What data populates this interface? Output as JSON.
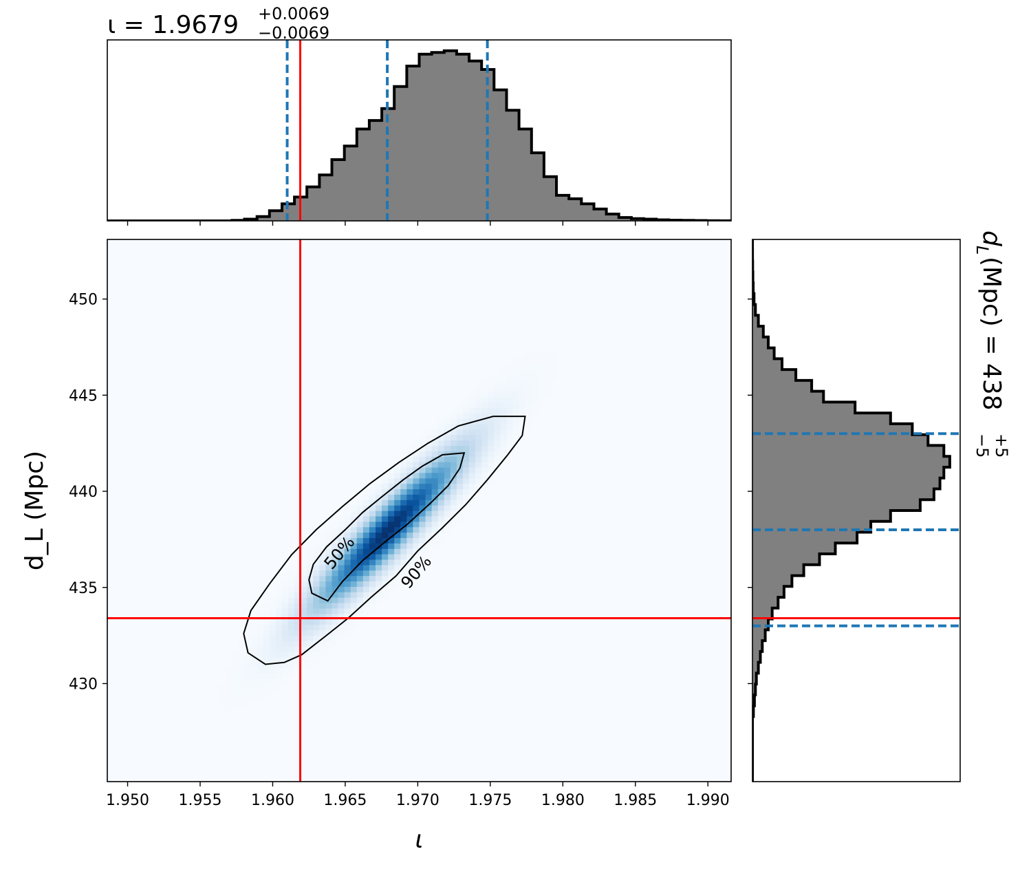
{
  "chart_data": [
    {
      "type": "histogram",
      "panel": "iota-marginal",
      "title": {
        "prefix": "ι = 1.9679",
        "upper": "+0.0069",
        "lower": "−0.0069"
      },
      "xlim": [
        1.9486,
        1.9916
      ],
      "bin_edges_start": 1.9486,
      "bin_width": 0.00086,
      "counts_normalized": [
        0,
        0,
        0,
        0,
        0,
        0,
        0,
        0,
        0,
        0,
        0.003,
        0.01,
        0.025,
        0.06,
        0.1,
        0.14,
        0.2,
        0.27,
        0.36,
        0.44,
        0.54,
        0.59,
        0.66,
        0.79,
        0.91,
        0.98,
        0.99,
        1.0,
        0.98,
        0.94,
        0.89,
        0.77,
        0.65,
        0.54,
        0.4,
        0.26,
        0.15,
        0.13,
        0.1,
        0.07,
        0.04,
        0.02,
        0.013,
        0.01,
        0.006,
        0.004,
        0.003,
        0.002,
        0.001,
        0.0005
      ],
      "quantile_lines": [
        1.961,
        1.9679,
        1.9748
      ],
      "true_value": 1.9619
    },
    {
      "type": "heatmap",
      "panel": "iota-dL-joint",
      "xlabel": "ι",
      "ylabel": "d_L (Mpc)",
      "xlim": [
        1.9486,
        1.9916
      ],
      "ylim": [
        424.9,
        453.1
      ],
      "x_ticks": [
        1.95,
        1.955,
        1.96,
        1.965,
        1.97,
        1.975,
        1.98,
        1.985,
        1.99
      ],
      "x_tick_labels": [
        "1.950",
        "1.955",
        "1.960",
        "1.965",
        "1.970",
        "1.975",
        "1.980",
        "1.985",
        "1.990"
      ],
      "y_ticks": [
        430,
        435,
        440,
        445,
        450
      ],
      "y_tick_labels": [
        "430",
        "435",
        "440",
        "445",
        "450"
      ],
      "density_center": [
        1.968,
        438.0
      ],
      "density_sigma": [
        0.0035,
        2.8
      ],
      "correlation": 0.93,
      "colormap": [
        "#f7fbff",
        "#deebf7",
        "#c6dbef",
        "#9ecae1",
        "#6baed6",
        "#4292c6",
        "#2171b5",
        "#08519c",
        "#08306b"
      ],
      "contours": [
        {
          "label": "50%",
          "points": [
            [
              1.9638,
              434.3
            ],
            [
              1.9627,
              434.7
            ],
            [
              1.9625,
              435.4
            ],
            [
              1.9628,
              436.2
            ],
            [
              1.9637,
              437.1
            ],
            [
              1.965,
              438.0
            ],
            [
              1.9662,
              438.9
            ],
            [
              1.9675,
              439.7
            ],
            [
              1.969,
              440.6
            ],
            [
              1.9703,
              441.3
            ],
            [
              1.9717,
              441.9
            ],
            [
              1.9732,
              442.0
            ],
            [
              1.9729,
              441.2
            ],
            [
              1.9721,
              440.3
            ],
            [
              1.9709,
              439.4
            ],
            [
              1.9693,
              438.3
            ],
            [
              1.9678,
              437.4
            ],
            [
              1.9662,
              436.4
            ],
            [
              1.9648,
              435.3
            ]
          ],
          "label_at": [
            1.9646,
            436.8
          ],
          "label_angle": -50
        },
        {
          "label": "90%",
          "points": [
            [
              1.9595,
              431.0
            ],
            [
              1.9583,
              431.6
            ],
            [
              1.958,
              432.6
            ],
            [
              1.9585,
              433.8
            ],
            [
              1.9598,
              435.2
            ],
            [
              1.9613,
              436.7
            ],
            [
              1.963,
              438.0
            ],
            [
              1.9648,
              439.2
            ],
            [
              1.9667,
              440.4
            ],
            [
              1.9687,
              441.5
            ],
            [
              1.9707,
              442.5
            ],
            [
              1.9728,
              443.4
            ],
            [
              1.9752,
              443.9
            ],
            [
              1.9774,
              443.9
            ],
            [
              1.9772,
              442.9
            ],
            [
              1.9762,
              441.9
            ],
            [
              1.9748,
              440.6
            ],
            [
              1.9733,
              439.3
            ],
            [
              1.9717,
              438.1
            ],
            [
              1.97,
              436.9
            ],
            [
              1.9685,
              435.6
            ],
            [
              1.9668,
              434.5
            ],
            [
              1.9652,
              433.4
            ],
            [
              1.9637,
              432.5
            ],
            [
              1.962,
              431.5
            ],
            [
              1.9608,
              431.1
            ]
          ],
          "label_at": [
            1.9699,
            435.8
          ],
          "label_angle": -50
        }
      ],
      "truth_lines": {
        "x": 1.9619,
        "y": 433.4
      }
    },
    {
      "type": "histogram",
      "panel": "dL-marginal",
      "orientation": "horizontal",
      "title": {
        "prefix": "d",
        "subscript": "L",
        "middle": " (Mpc) = 438",
        "upper": "+5",
        "lower": "−5"
      },
      "ylim": [
        424.9,
        453.1
      ],
      "bin_edges_start": 424.9,
      "bin_width": 0.564,
      "counts_normalized": [
        0,
        0,
        0,
        0,
        0,
        0,
        0.005,
        0.01,
        0.015,
        0.02,
        0.03,
        0.04,
        0.05,
        0.065,
        0.08,
        0.1,
        0.13,
        0.16,
        0.2,
        0.26,
        0.34,
        0.42,
        0.53,
        0.6,
        0.7,
        0.85,
        0.92,
        0.95,
        0.97,
        1.0,
        0.97,
        0.89,
        0.81,
        0.7,
        0.52,
        0.36,
        0.3,
        0.22,
        0.15,
        0.11,
        0.08,
        0.055,
        0.03,
        0.015,
        0.008,
        0.004,
        0.002,
        0.001,
        0.0005,
        0
      ],
      "quantile_lines": [
        433.0,
        438.0,
        443.0
      ],
      "true_value": 433.4
    }
  ]
}
